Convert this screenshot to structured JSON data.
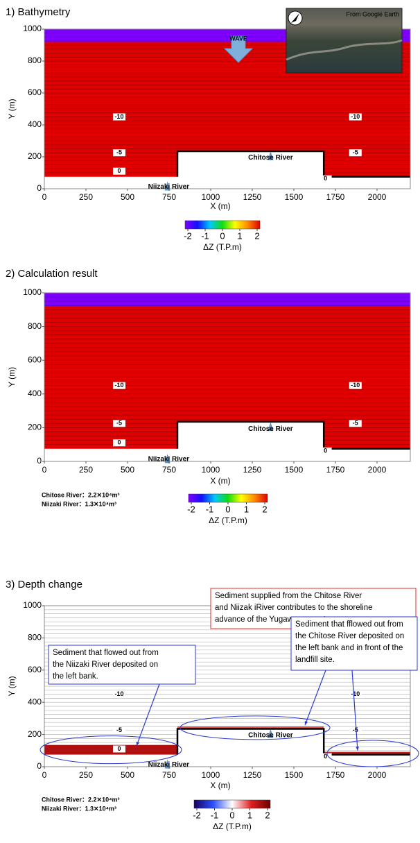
{
  "chart_data": [
    {
      "type": "contourf",
      "title": "1) Bathymetry",
      "xlabel": "X (m)",
      "ylabel": "Y (m)",
      "xlim": [
        0,
        2200
      ],
      "ylim": [
        0,
        1000
      ],
      "xticks": [
        0,
        250,
        500,
        750,
        1000,
        1250,
        1500,
        1750,
        2000
      ],
      "yticks": [
        0,
        200,
        400,
        600,
        800,
        1000
      ],
      "contour_levels": [
        -10,
        -5,
        0
      ],
      "rivers": [
        "Niizaki River",
        "Chitose River"
      ],
      "wave": "WAVE",
      "inset": "From Google Earth",
      "colorbar": {
        "label": "ΔZ (T.P.m)",
        "ticks": [
          -2,
          -1,
          0,
          1,
          2
        ],
        "colors": [
          "#7f00ff",
          "#1010ff",
          "#00c8ff",
          "#10dd10",
          "#ffff00",
          "#ff8c00",
          "#e00000"
        ]
      }
    },
    {
      "type": "contourf",
      "title": "2) Calculation result",
      "xlabel": "X (m)",
      "ylabel": "Y (m)",
      "xlim": [
        0,
        2200
      ],
      "ylim": [
        0,
        1000
      ],
      "xticks": [
        0,
        250,
        500,
        750,
        1000,
        1250,
        1500,
        1750,
        2000
      ],
      "yticks": [
        0,
        200,
        400,
        600,
        800,
        1000
      ],
      "contour_levels": [
        -10,
        -5,
        0
      ],
      "rivers": [
        "Niizaki River",
        "Chitose River"
      ],
      "volumes": [
        "Chitose River：2.2✕10⁴m³",
        "Niizaki River：1.3✕10⁴m³"
      ],
      "colorbar": {
        "label": "ΔZ (T.P.m)",
        "ticks": [
          -2,
          -1,
          0,
          1,
          2
        ],
        "colors": [
          "#7f00ff",
          "#1010ff",
          "#00c8ff",
          "#10dd10",
          "#ffff00",
          "#ff8c00",
          "#e00000"
        ]
      }
    },
    {
      "type": "contour",
      "title": "3) Depth change",
      "xlabel": "X (m)",
      "ylabel": "Y (m)",
      "xlim": [
        0,
        2200
      ],
      "ylim": [
        0,
        1000
      ],
      "xticks": [
        0,
        250,
        500,
        750,
        1000,
        1250,
        1500,
        1750,
        2000
      ],
      "yticks": [
        0,
        200,
        400,
        600,
        800,
        1000
      ],
      "contour_levels": [
        -10,
        -5,
        0
      ],
      "rivers": [
        "Niizaki River",
        "Chitose River"
      ],
      "volumes": [
        "Chitose River：2.2✕10⁴m³",
        "Niizaki River：1.3✕10⁴m³"
      ],
      "annotations": [
        [
          "Sediment supplied from the Chitose River",
          "and Niizak iRiver contributes to the shoreline",
          "advance of the Yugawara coast."
        ],
        [
          "Sediment that flowed out from",
          "the Niizaki River deposited on",
          "the left bank."
        ],
        [
          "Sediment that fflowed out from",
          "the Chitose River deposited on",
          "the left bank and in front of the",
          "landfill site."
        ]
      ],
      "colorbar": {
        "label": "ΔZ (T.P.m)",
        "ticks": [
          -2,
          -1,
          0,
          1,
          2
        ],
        "colors": [
          "#1a0060",
          "#2a50ff",
          "#ffffff",
          "#e02020",
          "#6a0000"
        ]
      }
    }
  ]
}
